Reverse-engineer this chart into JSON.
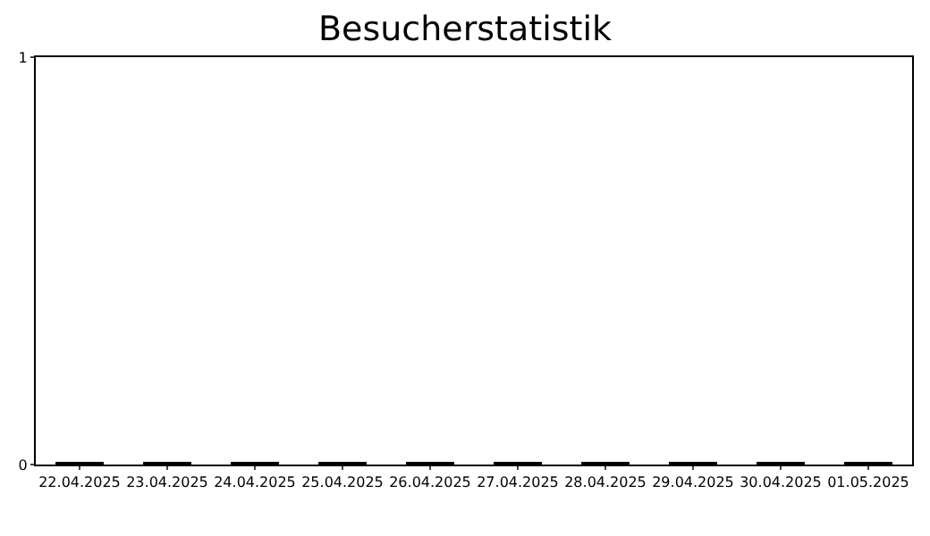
{
  "chart_data": {
    "type": "bar",
    "title": "Besucherstatistik",
    "categories": [
      "22.04.2025",
      "23.04.2025",
      "24.04.2025",
      "25.04.2025",
      "26.04.2025",
      "27.04.2025",
      "28.04.2025",
      "29.04.2025",
      "30.04.2025",
      "01.05.2025"
    ],
    "series": [
      {
        "color": "#000000",
        "values": [
          0,
          0,
          0,
          0,
          0,
          0,
          0,
          0,
          0,
          0
        ]
      }
    ],
    "ylim": [
      0,
      1
    ],
    "yticks": [
      0,
      1
    ]
  }
}
